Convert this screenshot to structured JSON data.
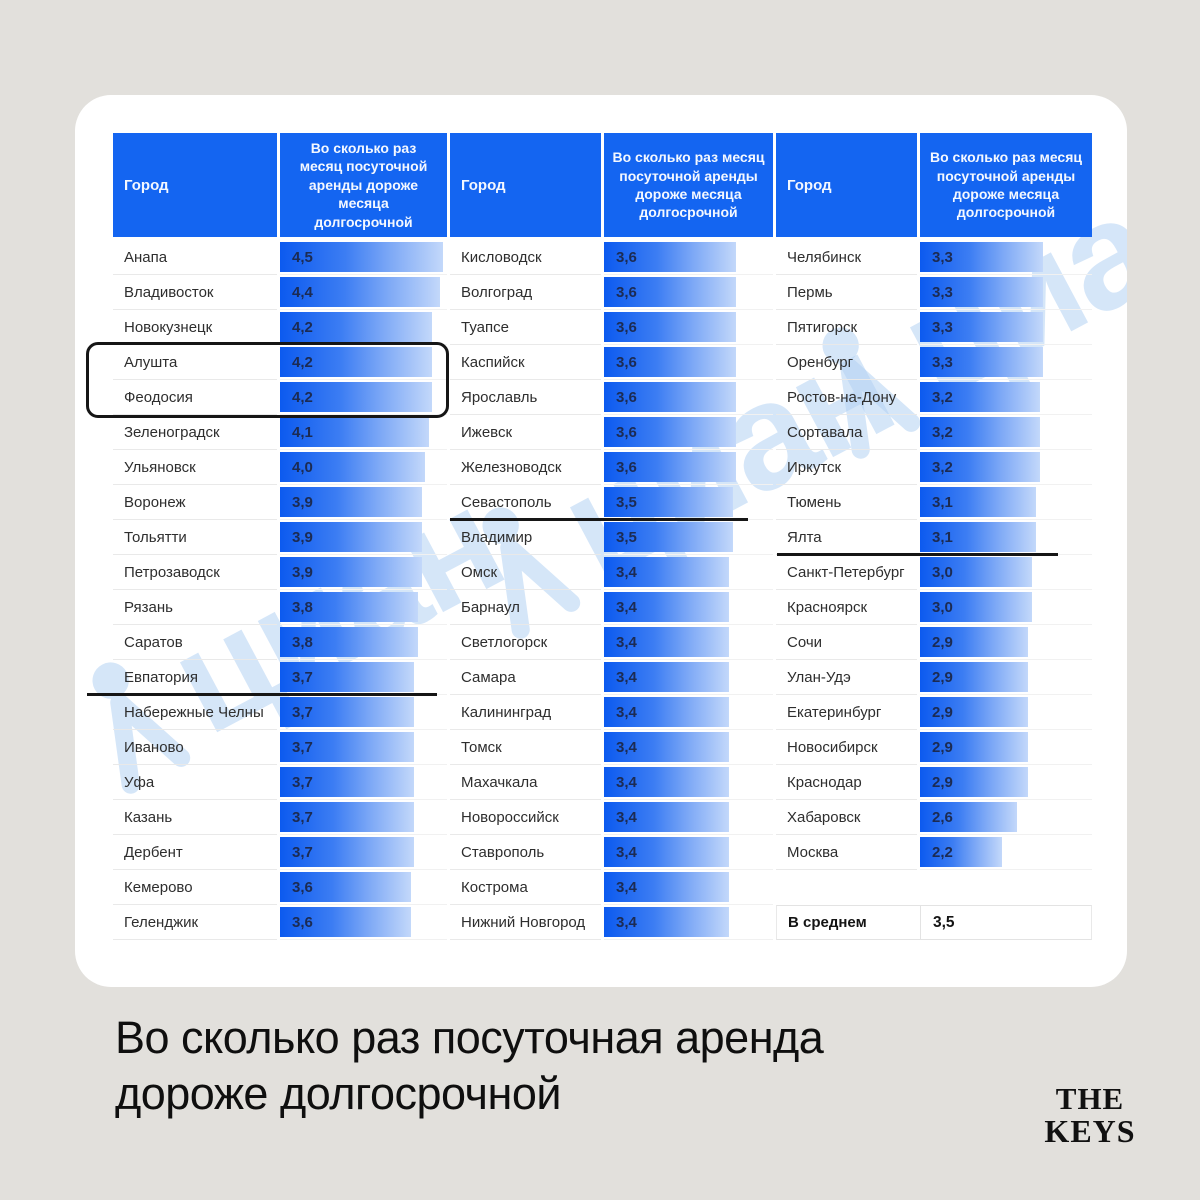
{
  "page": {
    "caption_line1": "Во сколько раз посуточная аренда",
    "caption_line2": "дороже долгосрочной",
    "watermark_text": "циан",
    "logo": {
      "line1": "THE",
      "line2": "KEYS"
    }
  },
  "colors": {
    "page_background": "#e2e0dc",
    "card_background": "#ffffff",
    "header_blue": "#1465f1",
    "bar_blue": "#0c5aef",
    "value_text": "#1c2b52",
    "annotation_black": "#161616",
    "watermark_blue": "#b3d2f4"
  },
  "chart_data": {
    "type": "table",
    "title": "Во сколько раз посуточная аренда дороже долгосрочной",
    "columns": [
      "Город",
      "Во сколько раз месяц посуточной аренды дороже месяца долгосрочной"
    ],
    "bar_scale_max": 4.6,
    "groups": [
      {
        "rows": [
          [
            "Анапа",
            "4,5"
          ],
          [
            "Владивосток",
            "4,4"
          ],
          [
            "Новокузнецк",
            "4,2"
          ],
          [
            "Алушта",
            "4,2"
          ],
          [
            "Феодосия",
            "4,2"
          ],
          [
            "Зеленоградск",
            "4,1"
          ],
          [
            "Ульяновск",
            "4,0"
          ],
          [
            "Воронеж",
            "3,9"
          ],
          [
            "Тольятти",
            "3,9"
          ],
          [
            "Петрозаводск",
            "3,9"
          ],
          [
            "Рязань",
            "3,8"
          ],
          [
            "Саратов",
            "3,8"
          ],
          [
            "Евпатория",
            "3,7"
          ],
          [
            "Набережные Челны",
            "3,7"
          ],
          [
            "Иваново",
            "3,7"
          ],
          [
            "Уфа",
            "3,7"
          ],
          [
            "Казань",
            "3,7"
          ],
          [
            "Дербент",
            "3,7"
          ],
          [
            "Кемерово",
            "3,6"
          ],
          [
            "Геленджик",
            "3,6"
          ]
        ]
      },
      {
        "rows": [
          [
            "Кисловодск",
            "3,6"
          ],
          [
            "Волгоград",
            "3,6"
          ],
          [
            "Туапсе",
            "3,6"
          ],
          [
            "Каспийск",
            "3,6"
          ],
          [
            "Ярославль",
            "3,6"
          ],
          [
            "Ижевск",
            "3,6"
          ],
          [
            "Железноводск",
            "3,6"
          ],
          [
            "Севастополь",
            "3,5"
          ],
          [
            "Владимир",
            "3,5"
          ],
          [
            "Омск",
            "3,4"
          ],
          [
            "Барнаул",
            "3,4"
          ],
          [
            "Светлогорск",
            "3,4"
          ],
          [
            "Самара",
            "3,4"
          ],
          [
            "Калининград",
            "3,4"
          ],
          [
            "Томск",
            "3,4"
          ],
          [
            "Махачкала",
            "3,4"
          ],
          [
            "Новороссийск",
            "3,4"
          ],
          [
            "Ставрополь",
            "3,4"
          ],
          [
            "Кострома",
            "3,4"
          ],
          [
            "Нижний Новгород",
            "3,4"
          ]
        ]
      },
      {
        "rows": [
          [
            "Челябинск",
            "3,3"
          ],
          [
            "Пермь",
            "3,3"
          ],
          [
            "Пятигорск",
            "3,3"
          ],
          [
            "Оренбург",
            "3,3"
          ],
          [
            "Ростов-на-Дону",
            "3,2"
          ],
          [
            "Сортавала",
            "3,2"
          ],
          [
            "Иркутск",
            "3,2"
          ],
          [
            "Тюмень",
            "3,1"
          ],
          [
            "Ялта",
            "3,1"
          ],
          [
            "Санкт-Петербург",
            "3,0"
          ],
          [
            "Красноярск",
            "3,0"
          ],
          [
            "Сочи",
            "2,9"
          ],
          [
            "Улан-Удэ",
            "2,9"
          ],
          [
            "Екатеринбург",
            "2,9"
          ],
          [
            "Новосибирск",
            "2,9"
          ],
          [
            "Краснодар",
            "2,9"
          ],
          [
            "Хабаровск",
            "2,6"
          ],
          [
            "Москва",
            "2,2"
          ]
        ]
      }
    ],
    "summary": {
      "label": "В среднем",
      "value": "3,5"
    },
    "annotations": {
      "boxed_cities": [
        "Алушта",
        "Феодосия"
      ],
      "underlined_cities": [
        "Евпатория",
        "Севастополь",
        "Ялта"
      ]
    }
  }
}
